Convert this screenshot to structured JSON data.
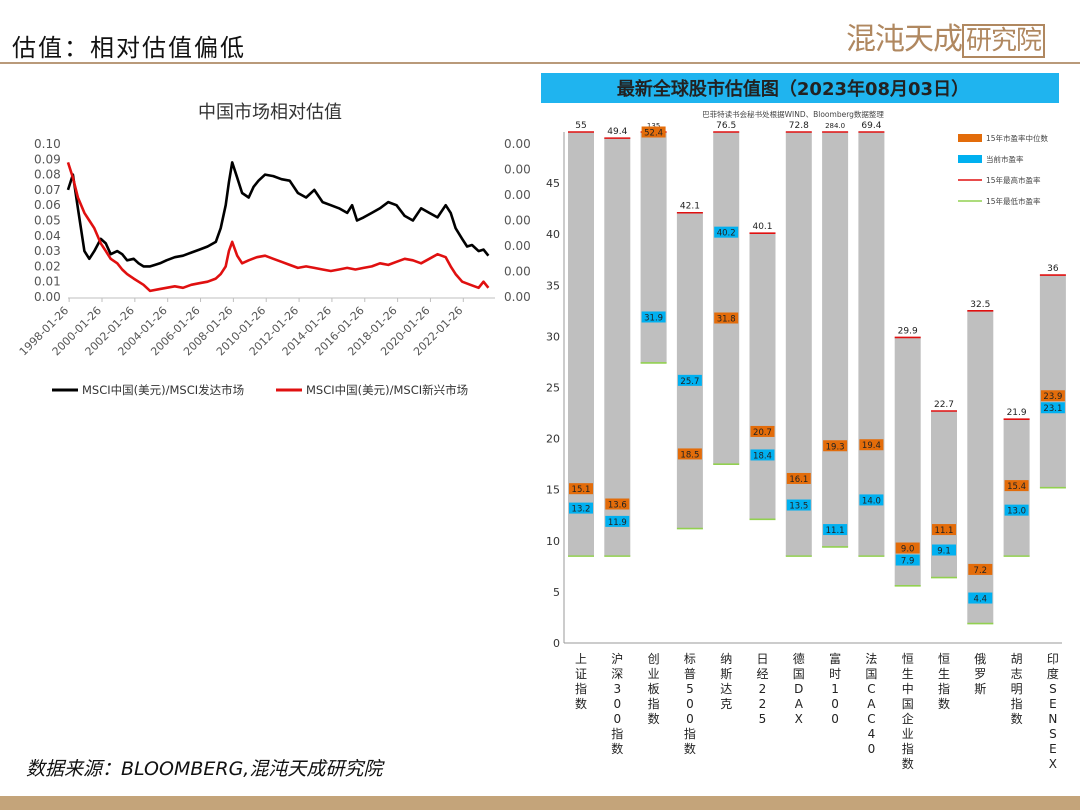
{
  "page": {
    "title": "估值：相对估值偏低",
    "logo_text": "混沌天成",
    "logo_boxed": "研究院",
    "source": "数据来源：BLOOMBERG,混沌天成研究院"
  },
  "chart_data": [
    {
      "type": "line",
      "title": "中国市场相对估值",
      "x_ticks": [
        "1998-01-26",
        "2000-01-26",
        "2002-01-26",
        "2004-01-26",
        "2006-01-26",
        "2008-01-26",
        "2010-01-26",
        "2012-01-26",
        "2014-01-26",
        "2016-01-26",
        "2018-01-26",
        "2020-01-26",
        "2022-01-26"
      ],
      "y_ticks_left": [
        "0.10",
        "0.09",
        "0.08",
        "0.07",
        "0.06",
        "0.05",
        "0.04",
        "0.03",
        "0.02",
        "0.01",
        "0.00"
      ],
      "y_ticks_right": [
        "0.00",
        "0.00",
        "0.00",
        "0.00",
        "0.00",
        "0.00",
        "0.00"
      ],
      "ylim": [
        0,
        0.1
      ],
      "grid": false,
      "legend_position": "bottom",
      "series": [
        {
          "name": "MSCI中国(美元)/MSCI发达市场",
          "color": "#000000",
          "x": [
            1998.0,
            1998.3,
            1998.6,
            1999.0,
            1999.3,
            1999.6,
            2000.0,
            2000.3,
            2000.6,
            2001.0,
            2001.3,
            2001.6,
            2002.0,
            2002.3,
            2002.6,
            2003.0,
            2003.3,
            2003.6,
            2004.0,
            2004.5,
            2005.0,
            2005.5,
            2006.0,
            2006.5,
            2007.0,
            2007.3,
            2007.6,
            2007.8,
            2008.0,
            2008.3,
            2008.6,
            2009.0,
            2009.3,
            2009.6,
            2010.0,
            2010.5,
            2011.0,
            2011.5,
            2012.0,
            2012.5,
            2013.0,
            2013.5,
            2014.0,
            2014.5,
            2015.0,
            2015.3,
            2015.6,
            2016.0,
            2016.5,
            2017.0,
            2017.5,
            2018.0,
            2018.5,
            2019.0,
            2019.5,
            2020.0,
            2020.5,
            2021.0,
            2021.3,
            2021.6,
            2022.0,
            2022.3,
            2022.6,
            2023.0,
            2023.3,
            2023.6
          ],
          "values": [
            0.07,
            0.08,
            0.058,
            0.03,
            0.025,
            0.03,
            0.038,
            0.035,
            0.028,
            0.03,
            0.028,
            0.024,
            0.025,
            0.022,
            0.02,
            0.02,
            0.021,
            0.022,
            0.024,
            0.026,
            0.027,
            0.029,
            0.031,
            0.033,
            0.036,
            0.045,
            0.06,
            0.075,
            0.088,
            0.078,
            0.068,
            0.065,
            0.072,
            0.076,
            0.08,
            0.079,
            0.077,
            0.076,
            0.068,
            0.065,
            0.07,
            0.062,
            0.06,
            0.058,
            0.055,
            0.06,
            0.05,
            0.052,
            0.055,
            0.058,
            0.062,
            0.06,
            0.053,
            0.05,
            0.058,
            0.055,
            0.052,
            0.06,
            0.055,
            0.045,
            0.038,
            0.033,
            0.034,
            0.03,
            0.031,
            0.027
          ]
        },
        {
          "name": "MSCI中国(美元)/MSCI新兴市场",
          "color": "#e01010",
          "x": [
            1998.0,
            1998.3,
            1998.6,
            1999.0,
            1999.3,
            1999.6,
            2000.0,
            2000.3,
            2000.6,
            2001.0,
            2001.3,
            2001.6,
            2002.0,
            2002.3,
            2002.6,
            2003.0,
            2003.5,
            2004.0,
            2004.5,
            2005.0,
            2005.5,
            2006.0,
            2006.5,
            2007.0,
            2007.3,
            2007.6,
            2007.8,
            2008.0,
            2008.3,
            2008.6,
            2009.0,
            2009.5,
            2010.0,
            2010.5,
            2011.0,
            2011.5,
            2012.0,
            2012.5,
            2013.0,
            2013.5,
            2014.0,
            2014.5,
            2015.0,
            2015.5,
            2016.0,
            2016.5,
            2017.0,
            2017.5,
            2018.0,
            2018.5,
            2019.0,
            2019.5,
            2020.0,
            2020.5,
            2021.0,
            2021.3,
            2021.6,
            2022.0,
            2022.5,
            2023.0,
            2023.3,
            2023.6
          ],
          "values": [
            0.088,
            0.078,
            0.065,
            0.055,
            0.05,
            0.045,
            0.035,
            0.03,
            0.025,
            0.022,
            0.018,
            0.015,
            0.012,
            0.01,
            0.008,
            0.004,
            0.005,
            0.006,
            0.007,
            0.006,
            0.008,
            0.009,
            0.01,
            0.012,
            0.015,
            0.02,
            0.03,
            0.036,
            0.027,
            0.022,
            0.024,
            0.026,
            0.027,
            0.025,
            0.023,
            0.021,
            0.019,
            0.02,
            0.019,
            0.018,
            0.017,
            0.018,
            0.019,
            0.018,
            0.019,
            0.02,
            0.022,
            0.021,
            0.023,
            0.025,
            0.024,
            0.022,
            0.025,
            0.028,
            0.026,
            0.02,
            0.015,
            0.01,
            0.008,
            0.006,
            0.01,
            0.006
          ]
        }
      ]
    },
    {
      "type": "bar",
      "title": "最新全球股市估值图（2023年08月03日）",
      "subtitle": "巴菲特读书会秘书处根据WIND、Bloomberg数据整理",
      "ylim": [
        0,
        50
      ],
      "y_ticks": [
        0,
        5,
        10,
        15,
        20,
        25,
        30,
        35,
        40,
        45
      ],
      "legend_position": "top-right",
      "legend": [
        "15年市盈率中位数",
        "当前市盈率",
        "15年最高市盈率",
        "15年最低市盈率"
      ],
      "colors": {
        "range": "#bfbfbf",
        "median": "#e36c0a",
        "current": "#00b0f0",
        "high": "#e01010",
        "low": "#92d050",
        "header": "#1fb4ef"
      },
      "categories": [
        "上证指数",
        "沪深300指数",
        "创业板指数",
        "标普500指数",
        "纳斯达克",
        "日经225",
        "德国DAX",
        "富时100",
        "法国CAC40",
        "恒生中国企业指数",
        "恒生指数",
        "俄罗斯",
        "胡志明指数",
        "印度SENSEX"
      ],
      "high": [
        55,
        49.4,
        135,
        42.1,
        76.5,
        40.1,
        72.8,
        284.0,
        69.4,
        29.9,
        22.7,
        32.5,
        21.9,
        36
      ],
      "high_labels": [
        "55",
        "49.4",
        "135",
        "42.1",
        "76.5",
        "40.1",
        "72.8",
        "284.0",
        "69.4",
        "29.9",
        "22.7",
        "32.5",
        "21.9",
        "36"
      ],
      "low": [
        8.5,
        8.5,
        27.4,
        11.2,
        17.5,
        12.1,
        8.5,
        9.4,
        8.5,
        5.6,
        6.4,
        1.9,
        8.5,
        15.2
      ],
      "median": [
        15.1,
        13.6,
        52.4,
        18.5,
        31.8,
        20.7,
        16.1,
        19.3,
        19.4,
        9.0,
        11.1,
        7.2,
        15.4,
        23.9
      ],
      "current": [
        13.2,
        11.9,
        31.9,
        25.7,
        40.2,
        18.4,
        13.5,
        11.1,
        14.0,
        7.9,
        9.1,
        4.4,
        13.0,
        23.1
      ]
    }
  ]
}
